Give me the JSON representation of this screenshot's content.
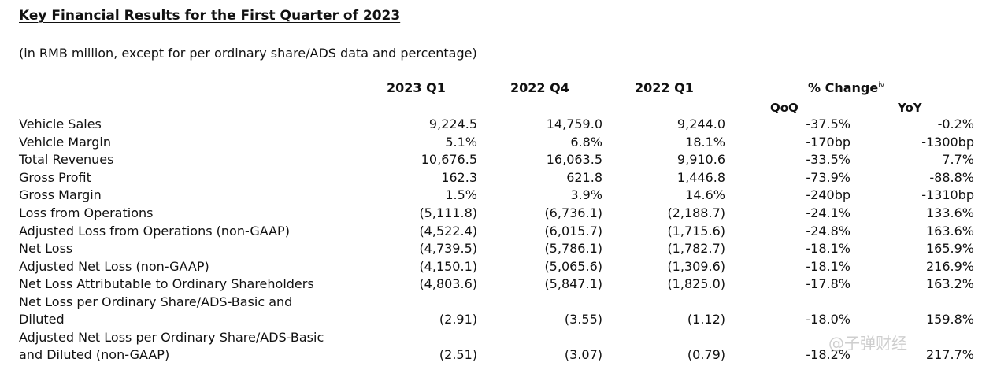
{
  "title": "Key Financial Results for the First Quarter of 2023",
  "subtitle": "(in RMB million, except for per ordinary share/ADS data and percentage)",
  "columns": {
    "q1_2023": "2023 Q1",
    "q4_2022": "2022 Q4",
    "q1_2022": "2022 Q1",
    "pct_change": "% Change",
    "pct_change_note": "iv",
    "qoq": "QoQ",
    "yoy": "YoY"
  },
  "rows": [
    {
      "label": "Vehicle Sales",
      "q1_2023": "9,224.5",
      "q4_2022": "14,759.0",
      "q1_2022": "9,244.0",
      "qoq": "-37.5%",
      "yoy": "-0.2%"
    },
    {
      "label": "Vehicle Margin",
      "q1_2023": "5.1%",
      "q4_2022": "6.8%",
      "q1_2022": "18.1%",
      "qoq": "-170bp",
      "yoy": "-1300bp"
    },
    {
      "label": "Total Revenues",
      "q1_2023": "10,676.5",
      "q4_2022": "16,063.5",
      "q1_2022": "9,910.6",
      "qoq": "-33.5%",
      "yoy": "7.7%"
    },
    {
      "label": "Gross Profit",
      "q1_2023": "162.3",
      "q4_2022": "621.8",
      "q1_2022": "1,446.8",
      "qoq": "-73.9%",
      "yoy": "-88.8%"
    },
    {
      "label": "Gross Margin",
      "q1_2023": "1.5%",
      "q4_2022": "3.9%",
      "q1_2022": "14.6%",
      "qoq": "-240bp",
      "yoy": "-1310bp"
    },
    {
      "label": "Loss from Operations",
      "q1_2023": "(5,111.8)",
      "q4_2022": "(6,736.1)",
      "q1_2022": "(2,188.7)",
      "qoq": "-24.1%",
      "yoy": "133.6%"
    },
    {
      "label": "Adjusted Loss from Operations (non-GAAP)",
      "q1_2023": "(4,522.4)",
      "q4_2022": "(6,015.7)",
      "q1_2022": "(1,715.6)",
      "qoq": "-24.8%",
      "yoy": "163.6%"
    },
    {
      "label": "Net Loss",
      "q1_2023": "(4,739.5)",
      "q4_2022": "(5,786.1)",
      "q1_2022": "(1,782.7)",
      "qoq": "-18.1%",
      "yoy": "165.9%"
    },
    {
      "label": "Adjusted Net Loss (non-GAAP)",
      "q1_2023": "(4,150.1)",
      "q4_2022": "(5,065.6)",
      "q1_2022": "(1,309.6)",
      "qoq": "-18.1%",
      "yoy": "216.9%"
    },
    {
      "label": "Net Loss Attributable to Ordinary Shareholders",
      "q1_2023": "(4,803.6)",
      "q4_2022": "(5,847.1)",
      "q1_2022": "(1,825.0)",
      "qoq": "-17.8%",
      "yoy": "163.2%"
    }
  ],
  "rows_two_line": [
    {
      "label_line1": "Net Loss per Ordinary Share/ADS-Basic and",
      "label_line2": "Diluted",
      "q1_2023": "(2.91)",
      "q4_2022": "(3.55)",
      "q1_2022": "(1.12)",
      "qoq": "-18.0%",
      "yoy": "159.8%"
    },
    {
      "label_line1": "Adjusted Net Loss per Ordinary Share/ADS-Basic",
      "label_line2": "and Diluted (non-GAAP)",
      "q1_2023": "(2.51)",
      "q4_2022": "(3.07)",
      "q1_2022": "(0.79)",
      "qoq": "-18.2%",
      "yoy": "217.7%"
    }
  ],
  "watermark": "@子弹财经"
}
